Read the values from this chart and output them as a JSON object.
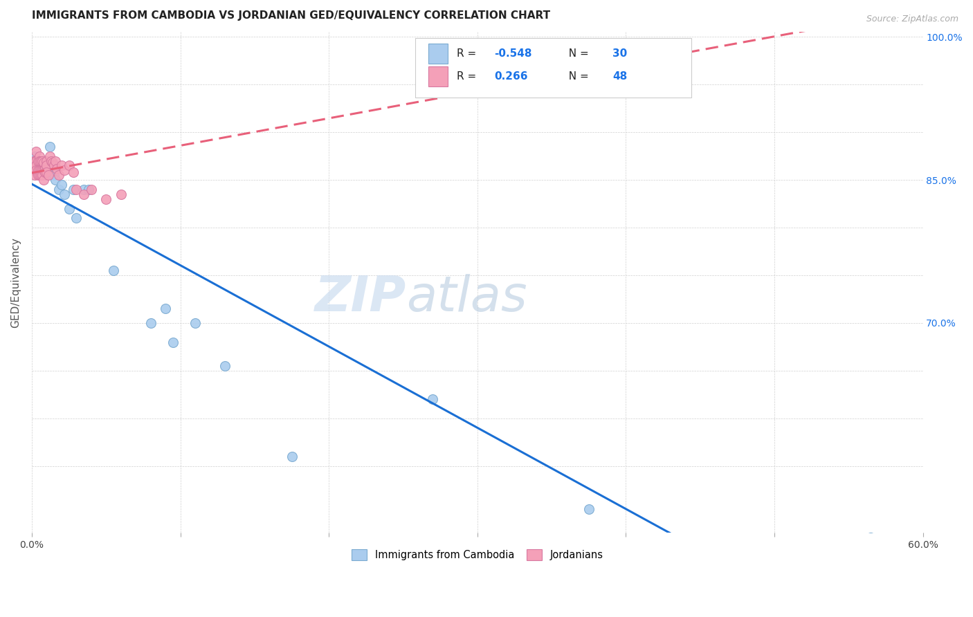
{
  "title": "IMMIGRANTS FROM CAMBODIA VS JORDANIAN GED/EQUIVALENCY CORRELATION CHART",
  "source": "Source: ZipAtlas.com",
  "ylabel": "GED/Equivalency",
  "xlim": [
    0.0,
    0.6
  ],
  "ylim": [
    0.48,
    1.005
  ],
  "xticks": [
    0.0,
    0.1,
    0.2,
    0.3,
    0.4,
    0.5,
    0.6
  ],
  "xticklabels": [
    "0.0%",
    "",
    "",
    "",
    "",
    "",
    "60.0%"
  ],
  "yticks_right": [
    0.55,
    0.6,
    0.65,
    0.7,
    0.75,
    0.8,
    0.85,
    0.9,
    0.95,
    1.0
  ],
  "yticklabels_right": [
    "",
    "",
    "",
    "70.0%",
    "",
    "",
    "85.0%",
    "",
    "",
    "100.0%"
  ],
  "color_cambodia": "#aaccee",
  "color_jordan": "#f4a0b8",
  "trendline_cambodia": "#1a6fd4",
  "trendline_jordan": "#e8607a",
  "legend_label1": "Immigrants from Cambodia",
  "legend_label2": "Jordanians",
  "R1": "-0.548",
  "N1": "30",
  "R2": "0.266",
  "N2": "48",
  "cambodia_x": [
    0.002,
    0.005,
    0.007,
    0.008,
    0.009,
    0.01,
    0.01,
    0.012,
    0.013,
    0.014,
    0.015,
    0.016,
    0.018,
    0.02,
    0.022,
    0.025,
    0.028,
    0.03,
    0.035,
    0.038,
    0.055,
    0.08,
    0.09,
    0.095,
    0.11,
    0.13,
    0.175,
    0.27,
    0.375,
    0.565
  ],
  "cambodia_y": [
    0.875,
    0.87,
    0.87,
    0.865,
    0.868,
    0.87,
    0.855,
    0.885,
    0.87,
    0.86,
    0.855,
    0.85,
    0.84,
    0.845,
    0.835,
    0.82,
    0.84,
    0.81,
    0.84,
    0.84,
    0.755,
    0.7,
    0.715,
    0.68,
    0.7,
    0.655,
    0.56,
    0.62,
    0.505,
    0.475
  ],
  "jordan_x": [
    0.001,
    0.001,
    0.002,
    0.002,
    0.002,
    0.003,
    0.003,
    0.003,
    0.003,
    0.004,
    0.004,
    0.004,
    0.005,
    0.005,
    0.005,
    0.005,
    0.006,
    0.006,
    0.006,
    0.007,
    0.007,
    0.007,
    0.008,
    0.008,
    0.008,
    0.009,
    0.009,
    0.01,
    0.01,
    0.01,
    0.011,
    0.012,
    0.013,
    0.014,
    0.015,
    0.016,
    0.017,
    0.018,
    0.02,
    0.022,
    0.025,
    0.028,
    0.03,
    0.035,
    0.04,
    0.05,
    0.06,
    0.34
  ],
  "jordan_y": [
    0.87,
    0.86,
    0.87,
    0.865,
    0.855,
    0.88,
    0.87,
    0.865,
    0.86,
    0.87,
    0.86,
    0.855,
    0.875,
    0.87,
    0.86,
    0.855,
    0.87,
    0.86,
    0.855,
    0.87,
    0.86,
    0.855,
    0.868,
    0.86,
    0.85,
    0.862,
    0.858,
    0.87,
    0.865,
    0.858,
    0.855,
    0.875,
    0.87,
    0.868,
    0.865,
    0.87,
    0.862,
    0.855,
    0.865,
    0.86,
    0.865,
    0.858,
    0.84,
    0.835,
    0.84,
    0.83,
    0.835,
    0.975
  ],
  "watermark_zip_color": "#ccddf0",
  "watermark_atlas_color": "#b8cce0"
}
